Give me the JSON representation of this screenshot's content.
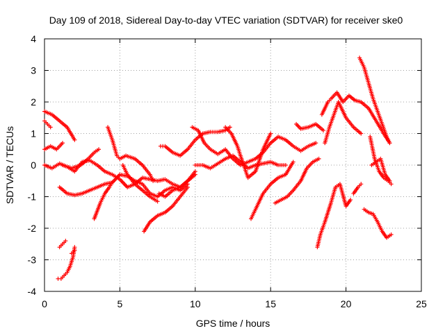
{
  "chart_data": {
    "type": "scatter",
    "title": "Day 109 of 2018, Sidereal Day-to-day VTEC variation (SDTVAR) for receiver ske0",
    "xlabel": "GPS time / hours",
    "ylabel": "SDTVAR / TECUs",
    "xlim": [
      0,
      25
    ],
    "ylim": [
      -4,
      4
    ],
    "xticks": [
      "0",
      "5",
      "10",
      "15",
      "20",
      "25"
    ],
    "yticks": [
      "-4",
      "-3",
      "-2",
      "-1",
      "0",
      "1",
      "2",
      "3",
      "4"
    ],
    "grid": true,
    "legend": "none",
    "marker": "+",
    "color": "#ff0000",
    "series": [
      {
        "x": [
          0.0,
          0.5,
          1.0,
          1.5,
          2.0
        ],
        "y": [
          1.7,
          1.6,
          1.4,
          1.2,
          0.8
        ]
      },
      {
        "x": [
          0.0,
          0.2,
          0.4
        ],
        "y": [
          1.4,
          1.3,
          1.2
        ]
      },
      {
        "x": [
          0.0,
          0.4,
          0.8,
          1.2
        ],
        "y": [
          0.5,
          0.6,
          0.5,
          0.7
        ]
      },
      {
        "x": [
          0.0,
          0.5,
          1.0,
          1.5,
          2.0,
          2.5,
          3.0,
          3.5,
          4.0,
          4.5,
          5.0,
          5.5,
          6.0,
          6.5,
          7.0,
          7.5,
          8.0,
          8.5,
          9.0,
          9.5,
          10.0
        ],
        "y": [
          0.0,
          -0.1,
          0.05,
          -0.05,
          -0.2,
          0.1,
          0.15,
          0.0,
          -0.2,
          -0.3,
          -0.45,
          -0.7,
          -0.6,
          -0.4,
          -0.45,
          -0.5,
          -0.45,
          -0.6,
          -0.7,
          -0.5,
          -0.2
        ]
      },
      {
        "x": [
          1.0,
          1.5,
          2.0,
          2.5,
          3.0,
          3.5,
          4.0,
          4.5,
          5.0,
          5.5,
          6.0,
          6.5,
          7.0,
          7.5,
          8.0,
          8.5,
          9.0,
          9.5
        ],
        "y": [
          -0.7,
          -0.9,
          -0.95,
          -0.9,
          -0.8,
          -0.7,
          -0.6,
          -0.55,
          -0.3,
          -0.35,
          -0.5,
          -0.6,
          -0.9,
          -1.0,
          -0.8,
          -0.7,
          -0.8,
          -0.6
        ]
      },
      {
        "x": [
          1.2,
          1.8,
          2.4,
          2.9,
          3.3,
          3.6
        ],
        "y": [
          0.0,
          -0.1,
          0.0,
          0.2,
          0.4,
          0.5
        ]
      },
      {
        "x": [
          3.3,
          3.7,
          4.0,
          4.3,
          4.5
        ],
        "y": [
          -1.7,
          -1.2,
          -0.9,
          -0.7,
          -0.55
        ]
      },
      {
        "x": [
          4.2,
          4.5,
          4.8,
          5.0,
          5.4,
          6.0,
          6.5,
          7.0,
          7.2
        ],
        "y": [
          1.2,
          0.8,
          0.3,
          0.2,
          0.3,
          0.2,
          0.0,
          -0.3,
          -0.5
        ]
      },
      {
        "x": [
          5.2,
          5.5,
          6.0,
          6.5,
          7.0,
          7.5
        ],
        "y": [
          0.0,
          -0.3,
          -0.6,
          -0.8,
          -1.0,
          -1.15
        ]
      },
      {
        "x": [
          6.6,
          7.0,
          7.5,
          8.0,
          8.5,
          9.0,
          9.5
        ],
        "y": [
          -2.1,
          -1.8,
          -1.6,
          -1.5,
          -1.3,
          -1.0,
          -0.7
        ]
      },
      {
        "x": [
          7.6,
          8.0,
          8.5,
          9.0,
          9.5,
          10.0
        ],
        "y": [
          -0.9,
          -1.0,
          -0.8,
          -0.7,
          -0.5,
          -0.3
        ]
      },
      {
        "x": [
          7.7,
          8.0,
          8.5,
          9.0,
          9.5,
          10.0,
          10.5,
          11.0,
          11.5,
          12.0,
          12.3
        ],
        "y": [
          0.6,
          0.6,
          0.4,
          0.3,
          0.5,
          0.8,
          1.0,
          1.05,
          1.05,
          1.1,
          1.2
        ]
      },
      {
        "x": [
          9.8,
          10.2,
          10.6,
          11.0,
          11.5,
          12.0,
          12.5,
          13.0,
          13.5,
          14.0,
          14.5,
          15.0,
          15.5,
          16.0,
          16.5,
          17.0,
          17.5,
          18.0
        ],
        "y": [
          1.2,
          1.1,
          0.7,
          0.5,
          0.35,
          0.5,
          0.2,
          0.0,
          0.1,
          0.2,
          0.4,
          0.7,
          0.9,
          0.8,
          0.6,
          0.45,
          0.6,
          0.7
        ]
      },
      {
        "x": [
          10.0,
          10.5,
          11.0,
          11.5,
          12.0,
          12.5,
          13.0,
          13.5,
          14.0,
          14.5,
          15.0,
          15.5,
          16.0
        ],
        "y": [
          0.0,
          0.0,
          -0.1,
          0.05,
          0.2,
          0.3,
          0.1,
          -0.1,
          0.0,
          0.05,
          0.1,
          0.0,
          0.0
        ]
      },
      {
        "x": [
          12.0,
          12.4,
          12.8,
          13.0,
          13.5,
          14.0,
          14.5,
          15.0
        ],
        "y": [
          1.2,
          1.0,
          0.6,
          0.3,
          -0.4,
          -0.2,
          0.5,
          1.0
        ]
      },
      {
        "x": [
          13.7,
          14.0,
          14.5,
          15.0,
          15.5,
          16.0,
          16.5
        ],
        "y": [
          -1.7,
          -1.4,
          -0.9,
          -0.6,
          -0.4,
          -0.3,
          0.1
        ]
      },
      {
        "x": [
          15.3,
          15.7,
          16.1,
          16.5,
          17.0,
          17.4,
          17.8,
          18.2
        ],
        "y": [
          -1.2,
          -1.1,
          -1.0,
          -0.8,
          -0.5,
          -0.1,
          0.1,
          0.2
        ]
      },
      {
        "x": [
          16.7,
          17.0,
          17.5,
          18.0,
          18.5
        ],
        "y": [
          1.3,
          1.15,
          1.2,
          1.3,
          1.1
        ]
      },
      {
        "x": [
          18.1,
          18.3,
          18.6,
          19.0,
          19.3,
          19.6,
          20.0,
          20.3
        ],
        "y": [
          -2.6,
          -2.2,
          -1.8,
          -1.2,
          -0.7,
          -0.6,
          -1.3,
          -1.1
        ]
      },
      {
        "x": [
          18.4,
          18.8,
          19.0,
          19.4,
          19.8,
          20.2,
          20.6,
          21.0,
          21.5,
          22.0,
          22.5,
          22.9
        ],
        "y": [
          1.6,
          2.0,
          2.1,
          2.3,
          2.0,
          2.2,
          2.05,
          2.0,
          1.8,
          1.4,
          1.0,
          0.7
        ]
      },
      {
        "x": [
          18.6,
          18.9,
          19.2,
          19.5,
          20.0,
          20.5,
          21.0
        ],
        "y": [
          0.7,
          1.2,
          1.6,
          2.0,
          1.5,
          1.2,
          1.0
        ]
      },
      {
        "x": [
          20.5,
          20.8,
          21.0
        ],
        "y": [
          -0.9,
          -0.7,
          -0.6
        ]
      },
      {
        "x": [
          20.9,
          21.2,
          21.5,
          21.8,
          22.1,
          22.4,
          22.7,
          22.9
        ],
        "y": [
          3.4,
          3.1,
          2.6,
          2.1,
          1.7,
          1.3,
          0.9,
          0.7
        ]
      },
      {
        "x": [
          21.2,
          21.5,
          21.8,
          22.1,
          22.4,
          22.7,
          23.0
        ],
        "y": [
          -1.4,
          -1.5,
          -1.55,
          -1.8,
          -2.1,
          -2.3,
          -2.2
        ]
      },
      {
        "x": [
          21.6,
          21.9,
          22.2,
          22.5,
          22.8,
          23.0
        ],
        "y": [
          0.9,
          0.2,
          -0.2,
          -0.4,
          -0.5,
          -0.6
        ]
      },
      {
        "x": [
          21.7,
          22.0,
          22.3,
          22.6,
          22.9
        ],
        "y": [
          0.0,
          0.1,
          0.2,
          -0.3,
          -0.5
        ]
      },
      {
        "x": [
          1.0,
          1.2,
          1.4
        ],
        "y": [
          -2.6,
          -2.5,
          -2.4
        ]
      },
      {
        "x": [
          1.8,
          2.0
        ],
        "y": [
          -2.8,
          -2.7
        ]
      },
      {
        "x": [
          0.9,
          1.1,
          1.3,
          1.5,
          1.7,
          1.9,
          2.0
        ],
        "y": [
          -3.6,
          -3.6,
          -3.5,
          -3.4,
          -3.2,
          -2.9,
          -2.6
        ]
      }
    ]
  }
}
